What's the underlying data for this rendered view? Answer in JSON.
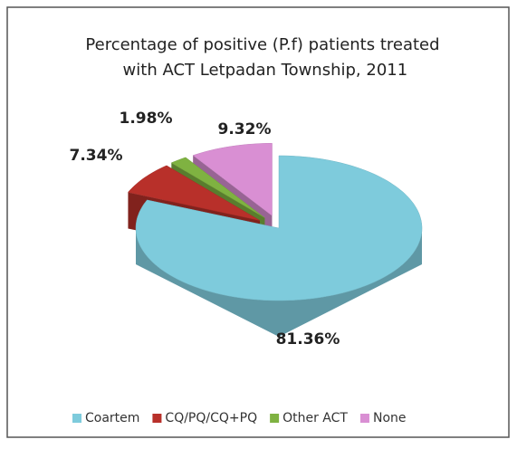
{
  "chart_data": {
    "type": "pie3d",
    "title": "Percentage of positive (P.f) patients treated with ACT Letpadan Township, 2011",
    "categories": [
      "Coartem",
      "CQ/PQ/CQ+PQ",
      "Other ACT",
      "None"
    ],
    "values": [
      81.36,
      7.34,
      1.98,
      9.32
    ],
    "value_labels": [
      "81.36%",
      "7.34%",
      "1.98%",
      "9.32%"
    ],
    "colors": [
      "#7ecbdc",
      "#b8302a",
      "#7fb241",
      "#d98fd3"
    ],
    "legend": "bottom"
  }
}
